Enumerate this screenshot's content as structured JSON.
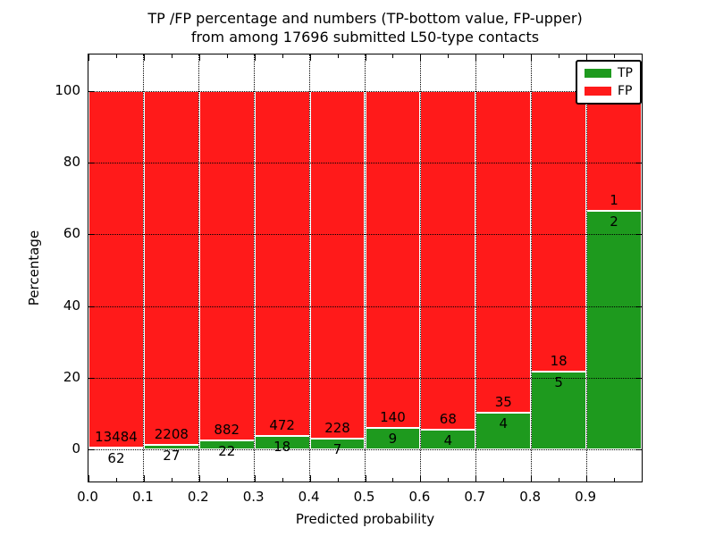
{
  "figure": {
    "title_line1": "TP /FP percentage and numbers (TP-bottom value, FP-upper)",
    "title_line2": "from among 17696 submitted L50-type contacts",
    "xlabel": "Predicted probability",
    "ylabel": "Percentage"
  },
  "legend": {
    "position": "upper right",
    "items": [
      {
        "label": "TP",
        "color": "#1e9a1e"
      },
      {
        "label": "FP",
        "color": "#ff1a1a"
      }
    ]
  },
  "chart_data": {
    "type": "bar",
    "stacked": true,
    "normalization": "each bar stacked to 100%",
    "title": "TP /FP percentage and numbers (TP-bottom value, FP-upper)\nfrom among 17696 submitted L50-type contacts",
    "xlabel": "Predicted probability",
    "ylabel": "Percentage",
    "total_contacts": 17696,
    "bin_edges": [
      0.0,
      0.1,
      0.2,
      0.3,
      0.4,
      0.5,
      0.6,
      0.7,
      0.8,
      0.9,
      1.0
    ],
    "x_tick_labels": [
      "0.0",
      "0.1",
      "0.2",
      "0.3",
      "0.4",
      "0.5",
      "0.6",
      "0.7",
      "0.8",
      "0.9"
    ],
    "y_ticks": [
      0,
      20,
      40,
      60,
      80,
      100
    ],
    "ylim": [
      -10,
      110
    ],
    "xlim": [
      0.0,
      1.0
    ],
    "grid": "dotted, both axes, on top of bars",
    "series": [
      {
        "name": "TP",
        "position": "bottom",
        "color": "#1e9a1e",
        "counts": [
          62,
          27,
          22,
          18,
          7,
          9,
          4,
          4,
          5,
          2
        ]
      },
      {
        "name": "FP",
        "position": "top",
        "color": "#ff1a1a",
        "counts": [
          13484,
          2208,
          882,
          472,
          228,
          140,
          68,
          35,
          18,
          1
        ]
      }
    ],
    "tp_percent_of_bin": [
      0.46,
      1.21,
      2.43,
      3.67,
      2.98,
      6.04,
      5.56,
      10.26,
      21.74,
      66.67
    ],
    "bar_label_rule": "FP count printed just above TP/FP boundary, TP count just below it"
  }
}
